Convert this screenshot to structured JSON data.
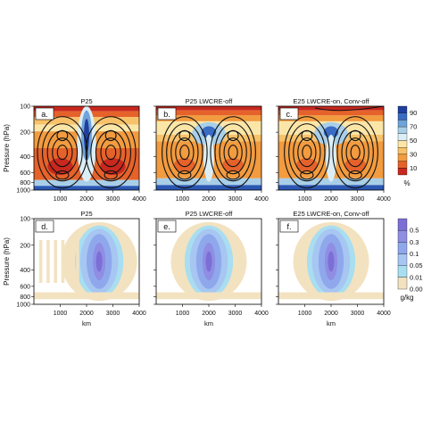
{
  "chart_data": [
    {
      "type": "heatmap",
      "row": "top",
      "panels": [
        {
          "title": "P25",
          "tag": "a.",
          "overlay_contours": true
        },
        {
          "title": "P25 LWCRE-off",
          "tag": "b.",
          "overlay_contours": true
        },
        {
          "title": "E25 LWCRE-on, Conv-off",
          "tag": "c.",
          "overlay_contours": true
        }
      ],
      "ylabel": "Pressure (hPa)",
      "ytick_labels": [
        "100",
        "200",
        "400",
        "600",
        "800",
        "1000"
      ],
      "xtick_labels": [
        "1000",
        "2000",
        "3000",
        "4000"
      ],
      "xlabel": "",
      "xlim": [
        0,
        4000
      ],
      "ylim": [
        1000,
        100
      ],
      "colorbar": {
        "labels": [
          "90",
          "70",
          "50",
          "30",
          "10"
        ],
        "units": "%",
        "colors": [
          "#1f3f9e",
          "#3a6cc4",
          "#6fa3d9",
          "#a9cfe8",
          "#dbeef6",
          "#fbe6a8",
          "#f8c26a",
          "#f29b3f",
          "#e5622a",
          "#c8281e"
        ]
      }
    },
    {
      "type": "heatmap",
      "row": "bottom",
      "panels": [
        {
          "title": "P25",
          "tag": "d."
        },
        {
          "title": "P25 LWCRE-off",
          "tag": "e."
        },
        {
          "title": "E25 LWCRE-on, Conv-off",
          "tag": "f."
        }
      ],
      "ylabel": "Pressure (hPa)",
      "ytick_labels": [
        "100",
        "200",
        "400",
        "600",
        "800",
        "1000"
      ],
      "xtick_labels": [
        "1000",
        "2000",
        "3000",
        "4000"
      ],
      "xlabel": "km",
      "xlim": [
        0,
        4000
      ],
      "ylim": [
        1000,
        100
      ],
      "colorbar": {
        "labels": [
          "0.5",
          "0.3",
          "0.1",
          "0.05",
          "0.01",
          "0.001"
        ],
        "units": "g/kg",
        "colors": [
          "#7b6fd6",
          "#8f8ee3",
          "#8fa8ec",
          "#a7c6f2",
          "#a8def0",
          "#f3e2c0"
        ]
      }
    }
  ]
}
